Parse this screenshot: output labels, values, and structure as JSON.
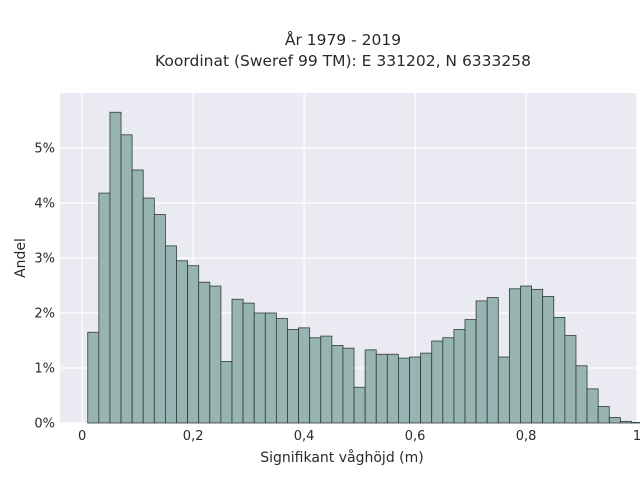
{
  "chart_data": {
    "type": "bar",
    "title": "År 1979 - 2019",
    "subtitle": "Koordinat (Sweref 99 TM): E 331202, N 6333258",
    "xlabel": "Signifikant våghöjd (m)",
    "ylabel": "Andel",
    "xlim": [
      -0.04,
      1.0
    ],
    "ylim": [
      0,
      6.0
    ],
    "x_ticks": [
      {
        "value": 0,
        "label": "0"
      },
      {
        "value": 0.2,
        "label": "0,2"
      },
      {
        "value": 0.4,
        "label": "0,4"
      },
      {
        "value": 0.6,
        "label": "0,6"
      },
      {
        "value": 0.8,
        "label": "0,8"
      },
      {
        "value": 1.0,
        "label": "1"
      }
    ],
    "y_ticks": [
      {
        "value": 0,
        "label": "0%"
      },
      {
        "value": 1,
        "label": "1%"
      },
      {
        "value": 2,
        "label": "2%"
      },
      {
        "value": 3,
        "label": "3%"
      },
      {
        "value": 4,
        "label": "4%"
      },
      {
        "value": 5,
        "label": "5%"
      }
    ],
    "grid": true,
    "bin_start": 0.01,
    "bin_width": 0.02,
    "bar_color": "#98b4b2",
    "bar_edge_color": "#2f3b3a",
    "plot_background": "#eaeaf2",
    "values": [
      1.65,
      4.18,
      5.65,
      5.24,
      4.6,
      4.09,
      3.79,
      3.22,
      2.95,
      2.86,
      2.56,
      2.49,
      1.12,
      2.25,
      2.18,
      2.0,
      2.0,
      1.9,
      1.7,
      1.73,
      1.55,
      1.58,
      1.41,
      1.36,
      0.65,
      1.33,
      1.25,
      1.25,
      1.18,
      1.2,
      1.27,
      1.49,
      1.55,
      1.7,
      1.88,
      2.22,
      2.28,
      1.2,
      2.44,
      2.49,
      2.43,
      2.3,
      1.92,
      1.59,
      1.04,
      0.62,
      0.3,
      0.1,
      0.03,
      0.01
    ]
  }
}
